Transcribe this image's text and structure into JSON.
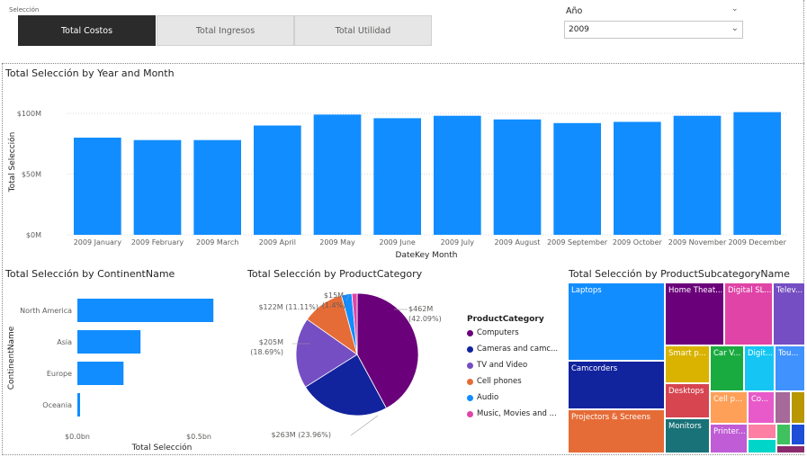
{
  "slicer": {
    "label": "Selección",
    "options": [
      "Total Costos",
      "Total Ingresos",
      "Total Utilidad"
    ],
    "active_index": 0
  },
  "year_filter": {
    "label": "Año",
    "value": "2009",
    "clear_glyph": "⌄"
  },
  "colors": {
    "bar": "#118dff",
    "active_button": "#2b2b2b",
    "button": "#e6e6e6"
  },
  "monthly_chart": {
    "title": "Total Selección by Year and Month",
    "xlabel": "DateKey Month",
    "ylabel": "Total Selección",
    "y_ticks": [
      "$100M",
      "$50M",
      "$0M"
    ],
    "ylim": [
      0,
      100
    ],
    "chart_data": {
      "type": "bar",
      "categories": [
        "2009 January",
        "2009 February",
        "2009 March",
        "2009 April",
        "2009 May",
        "2009 June",
        "2009 July",
        "2009 August",
        "2009 September",
        "2009 October",
        "2009 November",
        "2009 December"
      ],
      "values": [
        80,
        78,
        78,
        90,
        99,
        96,
        98,
        95,
        92,
        93,
        98,
        101
      ],
      "grid": true
    }
  },
  "continent_chart": {
    "title": "Total Selección by ContinentName",
    "xlabel": "Total Selección",
    "ylabel": "ContinentName",
    "x_ticks": [
      "$0.0bn",
      "$0.5bn"
    ],
    "chart_data": {
      "type": "bar",
      "orientation": "horizontal",
      "categories": [
        "North America",
        "Asia",
        "Europe",
        "Oceania"
      ],
      "values": [
        0.56,
        0.26,
        0.19,
        0.01
      ],
      "xlim": [
        0,
        0.6
      ]
    }
  },
  "category_chart": {
    "title": "Total Selección by ProductCategory",
    "legend_title": "ProductCategory",
    "chart_data": {
      "type": "pie",
      "slices": [
        {
          "name": "Computers",
          "value": 42.09,
          "color": "#6b007b"
        },
        {
          "name": "Cameras and camc...",
          "value": 23.96,
          "color": "#12239e"
        },
        {
          "name": "TV and Video",
          "value": 18.69,
          "color": "#744ec2"
        },
        {
          "name": "Cell phones",
          "value": 11.11,
          "color": "#e66c37"
        },
        {
          "name": "Audio",
          "value": 2.75,
          "color": "#118dff"
        },
        {
          "name": "Music, Movies and ...",
          "value": 1.4,
          "color": "#e044a7"
        }
      ],
      "labels": [
        {
          "line1": "$462M",
          "line2": "(42.09%)"
        },
        {
          "line1": "$263M (23.96%)",
          "line2": ""
        },
        {
          "line1": "$205M",
          "line2": "(18.69%)"
        },
        {
          "line1": "$122M (11.11%)",
          "line2": ""
        },
        {
          "line1": "$15M",
          "line2": "(1.4%)"
        }
      ]
    }
  },
  "subcategory_chart": {
    "title": "Total Selección by ProductSubcategoryName",
    "cells": [
      {
        "label": "Laptops",
        "color": "#118dff"
      },
      {
        "label": "Camcorders",
        "color": "#12239e"
      },
      {
        "label": "Projectors & Screens",
        "color": "#e66c37"
      },
      {
        "label": "Home Theat...",
        "color": "#6b007b"
      },
      {
        "label": "Digital SL...",
        "color": "#e044a7"
      },
      {
        "label": "Telev...",
        "color": "#744ec2"
      },
      {
        "label": "Smart p...",
        "color": "#d9b300"
      },
      {
        "label": "Car V...",
        "color": "#1aab40"
      },
      {
        "label": "Digit...",
        "color": "#15c6f4"
      },
      {
        "label": "Tou...",
        "color": "#4092ff"
      },
      {
        "label": "Desktops",
        "color": "#d64550"
      },
      {
        "label": "Monitors",
        "color": "#197278"
      },
      {
        "label": "Cell p...",
        "color": "#ffa058"
      },
      {
        "label": "Co...",
        "color": "#e85ac9"
      },
      {
        "label": "Printer...",
        "color": "#bf5cd6"
      },
      {
        "label": "",
        "color": "#a66999"
      },
      {
        "label": "",
        "color": "#b89700"
      },
      {
        "label": "",
        "color": "#fd7fa4"
      },
      {
        "label": "",
        "color": "#00d5c9"
      },
      {
        "label": "",
        "color": "#3ec15e"
      },
      {
        "label": "",
        "color": "#1d4ed8"
      },
      {
        "label": "",
        "color": "#8a2a6d"
      }
    ]
  }
}
